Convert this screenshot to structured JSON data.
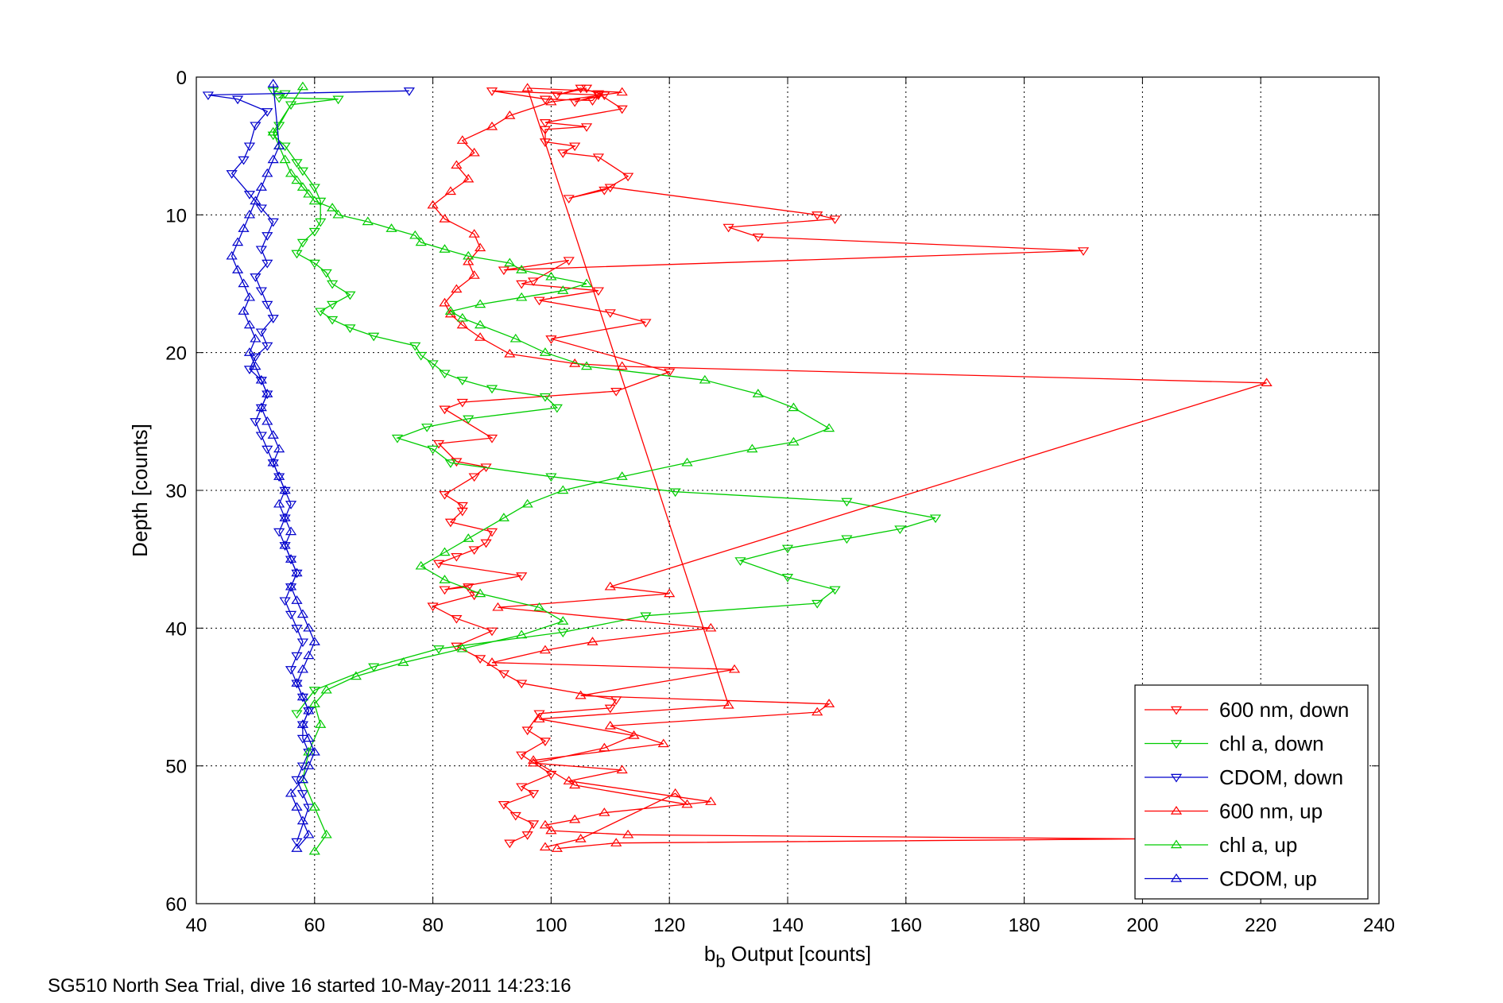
{
  "chart_data": {
    "type": "line",
    "xlabel_base": "b",
    "xlabel_sub": "b",
    "xlabel_rest": " Output [counts]",
    "ylabel": "Depth [counts]",
    "footer": "SG510 North Sea Trial, dive 16 started 10-May-2011 14:23:16",
    "xlim": [
      40,
      240
    ],
    "ylim": [
      0,
      60
    ],
    "y_reversed": true,
    "xticks": [
      40,
      60,
      80,
      100,
      120,
      140,
      160,
      180,
      200,
      220,
      240
    ],
    "yticks": [
      0,
      10,
      20,
      30,
      40,
      50,
      60
    ],
    "grid": true,
    "legend_position": "lower-right",
    "series": [
      {
        "name": "600 nm, down",
        "color": "#ff0000",
        "marker": "triangle-down",
        "x": [
          106,
          101,
          105,
          109,
          104,
          108,
          90,
          99,
          107,
          108,
          112,
          99,
          106,
          99,
          99,
          104,
          102,
          108,
          113,
          109,
          103,
          110,
          145,
          148,
          130,
          135,
          190,
          92,
          103,
          97,
          95,
          108,
          98,
          110,
          116,
          100,
          120,
          111,
          85,
          82,
          90,
          81,
          84,
          89,
          87,
          82,
          85,
          85,
          83,
          90,
          89,
          87,
          84,
          81,
          95,
          82,
          86,
          87,
          80,
          84,
          90,
          84,
          88,
          92,
          95,
          111,
          110,
          98,
          96,
          99,
          95,
          100,
          95,
          97,
          92,
          94,
          97,
          96,
          93
        ],
        "y": [
          0.8,
          1.3,
          0.8,
          1.3,
          1.8,
          1.3,
          1.0,
          1.6,
          1.7,
          1.2,
          2.3,
          3.3,
          3.6,
          3.8,
          4.7,
          5.0,
          5.5,
          5.8,
          7.2,
          8.2,
          8.8,
          8.0,
          10.0,
          10.3,
          10.9,
          11.6,
          12.6,
          14.0,
          13.3,
          14.8,
          15.0,
          15.5,
          16.2,
          17.1,
          17.8,
          19.0,
          21.4,
          22.8,
          23.6,
          24.1,
          26.2,
          26.6,
          27.9,
          28.3,
          29.0,
          30.3,
          31.1,
          31.5,
          32.3,
          33.0,
          33.8,
          34.3,
          34.8,
          35.3,
          36.2,
          37.2,
          37.0,
          37.6,
          38.4,
          39.3,
          40.2,
          41.3,
          42.2,
          43.3,
          44.0,
          45.2,
          45.8,
          46.2,
          47.4,
          48.2,
          49.2,
          50.6,
          51.5,
          52.0,
          52.8,
          53.6,
          54.2,
          55.0,
          55.6
        ]
      },
      {
        "name": "chl a, down",
        "color": "#00cc00",
        "marker": "triangle-down",
        "x": [
          53,
          55,
          54,
          64,
          56,
          54,
          53,
          55,
          57,
          58,
          60,
          61,
          61,
          60,
          58,
          57,
          60,
          62,
          63,
          66,
          63,
          61,
          63,
          66,
          70,
          77,
          78,
          80,
          82,
          85,
          90,
          99,
          101,
          86,
          79,
          74,
          80,
          83,
          100,
          121,
          150,
          165,
          159,
          150,
          140,
          132,
          140,
          148,
          145,
          116,
          102,
          81,
          70,
          60,
          57
        ],
        "y": [
          1.0,
          1.2,
          1.5,
          1.6,
          2.0,
          3.5,
          4.2,
          5.0,
          6.2,
          6.8,
          8.0,
          9.0,
          10.5,
          11.2,
          12.0,
          12.8,
          13.5,
          14.2,
          15.0,
          15.8,
          16.5,
          17.0,
          17.6,
          18.2,
          18.8,
          19.5,
          20.2,
          20.8,
          21.5,
          22.0,
          22.6,
          23.2,
          24.0,
          24.8,
          25.4,
          26.2,
          27.0,
          28.0,
          29.0,
          30.1,
          30.8,
          32.0,
          32.8,
          33.5,
          34.2,
          35.1,
          36.3,
          37.2,
          38.2,
          39.1,
          40.3,
          41.5,
          42.8,
          44.5,
          46.2
        ]
      },
      {
        "name": "CDOM, down",
        "color": "#0000cc",
        "marker": "triangle-down",
        "x": [
          76,
          42,
          47,
          52,
          50,
          49,
          48,
          46,
          49,
          51,
          53,
          52,
          51,
          52,
          50,
          51,
          52,
          53,
          51,
          52,
          50,
          49,
          51,
          52,
          51,
          50,
          51,
          52,
          53,
          54,
          55,
          56,
          55,
          54,
          55,
          56,
          57,
          56,
          55,
          56,
          57,
          58,
          57,
          56,
          57,
          58,
          59,
          58,
          58,
          59,
          58,
          57,
          58,
          59,
          57
        ],
        "y": [
          1.0,
          1.3,
          1.6,
          2.5,
          3.5,
          5.0,
          6.0,
          7.0,
          8.5,
          9.5,
          10.5,
          11.5,
          12.5,
          13.5,
          14.5,
          15.5,
          16.5,
          17.5,
          18.5,
          19.5,
          20.3,
          21.2,
          22.0,
          23.0,
          24.0,
          25.0,
          26.0,
          27.0,
          28.0,
          29.0,
          30.0,
          31.0,
          32.0,
          33.0,
          34.0,
          35.0,
          36.0,
          37.0,
          38.0,
          39.0,
          40.0,
          41.0,
          42.0,
          43.0,
          44.0,
          45.0,
          46.0,
          47.0,
          48.0,
          49.0,
          50.0,
          51.0,
          52.0,
          53.0,
          55.5
        ]
      },
      {
        "name": "600 nm, up",
        "color": "#ff0000",
        "marker": "triangle-up",
        "x": [
          99,
          105,
          121,
          123,
          104,
          97,
          119,
          110,
          145,
          147,
          105,
          131,
          90,
          99,
          107,
          127,
          91,
          120,
          110,
          221,
          112,
          104,
          93,
          88,
          85,
          83,
          82,
          84,
          87,
          86,
          88,
          87,
          82,
          80,
          83,
          86,
          84,
          87,
          85,
          90,
          93,
          100,
          112,
          96,
          130,
          98,
          114,
          109,
          97,
          112,
          103,
          127,
          109,
          104,
          99,
          100,
          113,
          200,
          111,
          101
        ],
        "y": [
          55.9,
          55.3,
          52.0,
          52.8,
          51.4,
          49.6,
          48.4,
          47.1,
          46.1,
          45.5,
          44.9,
          43.0,
          42.5,
          41.6,
          41.0,
          40.0,
          38.5,
          37.5,
          37.0,
          22.2,
          21.0,
          20.8,
          20.1,
          18.9,
          18.0,
          17.2,
          16.4,
          15.4,
          14.4,
          13.4,
          12.4,
          11.4,
          10.3,
          9.3,
          8.3,
          7.4,
          6.4,
          5.5,
          4.6,
          3.6,
          2.8,
          1.8,
          1.1,
          0.8,
          45.6,
          46.6,
          47.8,
          48.7,
          49.8,
          50.3,
          51.1,
          52.6,
          53.4,
          53.9,
          54.3,
          54.7,
          55.0,
          55.3,
          55.6,
          56.0
        ]
      },
      {
        "name": "chl a, up",
        "color": "#00cc00",
        "marker": "triangle-up",
        "x": [
          60,
          62,
          60,
          58,
          59,
          61,
          60,
          62,
          67,
          75,
          85,
          95,
          102,
          98,
          88,
          82,
          78,
          82,
          86,
          92,
          96,
          102,
          112,
          123,
          134,
          141,
          147,
          141,
          135,
          126,
          106,
          99,
          94,
          88,
          85,
          83,
          88,
          95,
          102,
          106,
          100,
          95,
          93,
          86,
          82,
          78,
          77,
          73,
          69,
          64,
          63,
          60,
          59,
          58,
          57,
          56,
          55,
          54,
          53,
          58
        ],
        "y": [
          56.2,
          55.0,
          53.0,
          51.0,
          49.0,
          47.0,
          45.5,
          44.5,
          43.5,
          42.5,
          41.5,
          40.5,
          39.5,
          38.5,
          37.5,
          36.5,
          35.5,
          34.5,
          33.5,
          32.0,
          31.0,
          30.0,
          29.0,
          28.0,
          27.0,
          26.5,
          25.5,
          24.0,
          23.0,
          22.0,
          21.0,
          20.0,
          19.0,
          18.0,
          17.5,
          17.0,
          16.5,
          16.0,
          15.5,
          15.0,
          14.5,
          14.0,
          13.5,
          13.0,
          12.5,
          12.0,
          11.5,
          11.0,
          10.5,
          10.0,
          9.5,
          9.0,
          8.5,
          8.0,
          7.5,
          7.0,
          6.0,
          5.0,
          4.0,
          0.7
        ]
      },
      {
        "name": "CDOM, up",
        "color": "#0000cc",
        "marker": "triangle-up",
        "x": [
          57,
          59,
          58,
          57,
          56,
          58,
          59,
          60,
          59,
          58,
          59,
          58,
          57,
          58,
          59,
          60,
          59,
          58,
          57,
          56,
          57,
          56,
          55,
          56,
          55,
          54,
          55,
          54,
          53,
          54,
          53,
          52,
          51,
          52,
          51,
          50,
          49,
          50,
          49,
          48,
          49,
          48,
          47,
          46,
          47,
          48,
          49,
          50,
          51,
          52,
          53,
          54,
          53
        ],
        "y": [
          56.0,
          55.0,
          54.0,
          53.0,
          52.0,
          51.0,
          50.0,
          49.0,
          48.0,
          47.0,
          46.0,
          45.0,
          44.0,
          43.0,
          42.0,
          41.0,
          40.0,
          39.0,
          38.0,
          37.0,
          36.0,
          35.0,
          34.0,
          33.0,
          32.0,
          31.0,
          30.0,
          29.0,
          28.0,
          27.0,
          26.0,
          25.0,
          24.0,
          23.0,
          22.0,
          21.0,
          20.0,
          19.0,
          18.0,
          17.0,
          16.0,
          15.0,
          14.0,
          13.0,
          12.0,
          11.0,
          10.0,
          9.0,
          8.0,
          7.0,
          6.0,
          5.0,
          0.5
        ]
      }
    ]
  }
}
